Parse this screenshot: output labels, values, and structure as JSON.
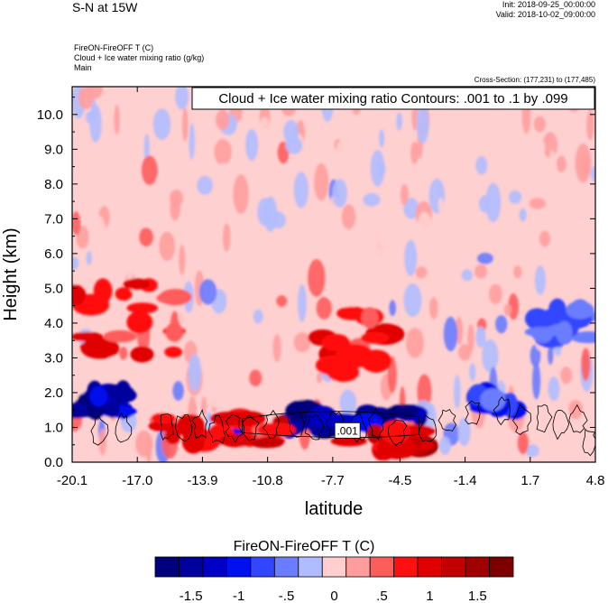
{
  "header": {
    "title": "S-N at 15W",
    "init": "Init: 2018-09-25_00:00:00",
    "valid": "Valid: 2018-10-02_09:00:00",
    "field_line1": "FireON-FireOFF T   (C)",
    "field_line2": "Cloud + Ice water mixing ratio   (g/kg)",
    "field_line3": "Main",
    "cross_section": "Cross-Section: (177,231) to (177,485)"
  },
  "chart_data": {
    "type": "heatmap",
    "title": "S-N at 15W",
    "xlabel": "latitude",
    "ylabel": "Height (km)",
    "xlim": [
      -20.1,
      4.8
    ],
    "ylim": [
      0.0,
      10.8
    ],
    "xticks": [
      "-20.1",
      "-17.0",
      "-13.9",
      "-10.8",
      "-7.7",
      "-4.5",
      "-1.4",
      "1.7",
      "4.8"
    ],
    "xtick_values": [
      -20.1,
      -17.0,
      -13.9,
      -10.8,
      -7.7,
      -4.5,
      -1.4,
      1.7,
      4.8
    ],
    "yticks": [
      "0.0",
      "1.0",
      "2.0",
      "3.0",
      "4.0",
      "5.0",
      "6.0",
      "7.0",
      "8.0",
      "9.0",
      "10.0"
    ],
    "ytick_values": [
      0,
      1,
      2,
      3,
      4,
      5,
      6,
      7,
      8,
      9,
      10
    ],
    "contour_legend": "Cloud + Ice water mixing ratio Contours: .001 to .1 by .099",
    "contour_label": ".001",
    "contour_label_pos": [
      -7.0,
      0.9
    ],
    "features": [
      {
        "kind": "cold",
        "lat": [
          -20.1,
          -17.5
        ],
        "z": [
          1.4,
          2.1
        ],
        "value": -1.5
      },
      {
        "kind": "cold",
        "lat": [
          -12.0,
          -3.5
        ],
        "z": [
          0.9,
          1.6
        ],
        "value": -1.6
      },
      {
        "kind": "cold",
        "lat": [
          -1.0,
          1.0
        ],
        "z": [
          1.5,
          2.0
        ],
        "value": -1.0
      },
      {
        "kind": "warm",
        "lat": [
          -20.1,
          -15.0
        ],
        "z": [
          3.0,
          5.2
        ],
        "value": 0.9
      },
      {
        "kind": "warm",
        "lat": [
          -16.0,
          -10.0
        ],
        "z": [
          0.5,
          1.3
        ],
        "value": 1.0
      },
      {
        "kind": "warm",
        "lat": [
          -8.5,
          -5.0
        ],
        "z": [
          2.5,
          4.5
        ],
        "value": 0.9
      },
      {
        "kind": "warm",
        "lat": [
          -7.0,
          -3.0
        ],
        "z": [
          0.3,
          0.9
        ],
        "value": 1.3
      },
      {
        "kind": "cold",
        "lat": [
          2.0,
          4.5
        ],
        "z": [
          3.5,
          4.5
        ],
        "value": -0.8
      }
    ],
    "colorbar": {
      "title": "FireON-FireOFF T  (C)",
      "levels": [
        -1.75,
        -1.5,
        -1.25,
        -1,
        -0.75,
        -0.5,
        -0.25,
        0,
        0.25,
        0.5,
        0.75,
        1,
        1.25,
        1.5,
        1.75
      ],
      "labels": [
        "-1.5",
        "-1",
        "-.5",
        "0",
        ".5",
        "1",
        "1.5"
      ],
      "label_values": [
        -1.5,
        -1.0,
        -0.5,
        0.0,
        0.5,
        1.0,
        1.5
      ],
      "colors": [
        "#00007d",
        "#00009c",
        "#0000c4",
        "#0010ee",
        "#3246ff",
        "#6a7cff",
        "#b0bcff",
        "#ffcfcf",
        "#ff9d9d",
        "#ff5c5c",
        "#ff1010",
        "#e00000",
        "#c20000",
        "#a00000",
        "#7d0000"
      ]
    }
  }
}
